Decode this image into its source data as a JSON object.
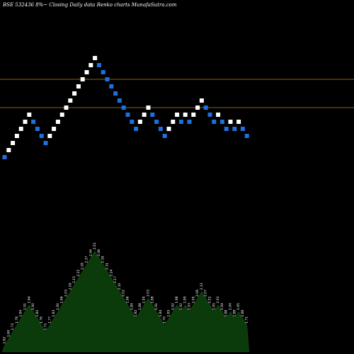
{
  "chart_data": {
    "type": "renko",
    "title": "BSE 532436  8%~  Closing Daily data  Renko  charts MunafaSutra.com",
    "up_color": "#ffffff",
    "down_color": "#1e6fe0",
    "line_color": "#b8860b",
    "volume_color": "#0b3a0b",
    "bricks": [
      {
        "y": 1.0,
        "dir": "down"
      },
      {
        "y": 1.05,
        "dir": "up"
      },
      {
        "y": 1.1,
        "dir": "up"
      },
      {
        "y": 1.15,
        "dir": "up"
      },
      {
        "y": 1.2,
        "dir": "up"
      },
      {
        "y": 1.25,
        "dir": "up"
      },
      {
        "y": 1.3,
        "dir": "up"
      },
      {
        "y": 1.25,
        "dir": "down"
      },
      {
        "y": 1.2,
        "dir": "down"
      },
      {
        "y": 1.15,
        "dir": "down"
      },
      {
        "y": 1.1,
        "dir": "down"
      },
      {
        "y": 1.15,
        "dir": "up"
      },
      {
        "y": 1.2,
        "dir": "up"
      },
      {
        "y": 1.25,
        "dir": "up"
      },
      {
        "y": 1.3,
        "dir": "up"
      },
      {
        "y": 1.35,
        "dir": "up"
      },
      {
        "y": 1.4,
        "dir": "up"
      },
      {
        "y": 1.45,
        "dir": "up"
      },
      {
        "y": 1.5,
        "dir": "up"
      },
      {
        "y": 1.55,
        "dir": "up"
      },
      {
        "y": 1.6,
        "dir": "up"
      },
      {
        "y": 1.65,
        "dir": "up"
      },
      {
        "y": 1.7,
        "dir": "up"
      },
      {
        "y": 1.65,
        "dir": "down"
      },
      {
        "y": 1.6,
        "dir": "down"
      },
      {
        "y": 1.55,
        "dir": "down"
      },
      {
        "y": 1.5,
        "dir": "down"
      },
      {
        "y": 1.45,
        "dir": "down"
      },
      {
        "y": 1.4,
        "dir": "down"
      },
      {
        "y": 1.35,
        "dir": "down"
      },
      {
        "y": 1.3,
        "dir": "down"
      },
      {
        "y": 1.25,
        "dir": "down"
      },
      {
        "y": 1.2,
        "dir": "down"
      },
      {
        "y": 1.25,
        "dir": "up"
      },
      {
        "y": 1.3,
        "dir": "up"
      },
      {
        "y": 1.35,
        "dir": "up"
      },
      {
        "y": 1.3,
        "dir": "down"
      },
      {
        "y": 1.25,
        "dir": "down"
      },
      {
        "y": 1.2,
        "dir": "down"
      },
      {
        "y": 1.15,
        "dir": "down"
      },
      {
        "y": 1.2,
        "dir": "up"
      },
      {
        "y": 1.25,
        "dir": "up"
      },
      {
        "y": 1.3,
        "dir": "up"
      },
      {
        "y": 1.25,
        "dir": "down"
      },
      {
        "y": 1.3,
        "dir": "up"
      },
      {
        "y": 1.25,
        "dir": "down"
      },
      {
        "y": 1.3,
        "dir": "up"
      },
      {
        "y": 1.35,
        "dir": "up"
      },
      {
        "y": 1.4,
        "dir": "up"
      },
      {
        "y": 1.35,
        "dir": "down"
      },
      {
        "y": 1.3,
        "dir": "down"
      },
      {
        "y": 1.25,
        "dir": "down"
      },
      {
        "y": 1.3,
        "dir": "up"
      },
      {
        "y": 1.25,
        "dir": "down"
      },
      {
        "y": 1.2,
        "dir": "down"
      },
      {
        "y": 1.25,
        "dir": "up"
      },
      {
        "y": 1.2,
        "dir": "down"
      },
      {
        "y": 1.25,
        "dir": "up"
      },
      {
        "y": 1.2,
        "dir": "down"
      },
      {
        "y": 1.15,
        "dir": "down"
      }
    ],
    "brick_labels": [
      "1.62",
      "1.69",
      "1.73",
      "1.78",
      "1.84",
      "1.91",
      "1.94",
      "1.90",
      "1.82",
      "1.76",
      "1.71",
      "1.77",
      "1.83",
      "1.90",
      "1.96",
      "2.03",
      "2.09",
      "2.15",
      "2.22",
      "2.28",
      "2.37",
      "2.44",
      "2.51",
      "2.46",
      "2.39",
      "2.31",
      "2.24",
      "2.17",
      "2.10",
      "2.02",
      "1.96",
      "1.89",
      "1.82",
      "1.88",
      "1.95",
      "2.03",
      "1.98",
      "1.91",
      "1.84",
      "1.79",
      "1.85",
      "1.92",
      "1.98",
      "1.92",
      "1.99",
      "1.93",
      "2.00",
      "2.06",
      "2.13",
      "2.07",
      "2.01",
      "1.95",
      "2.01",
      "1.94",
      "1.88",
      "1.94",
      "1.88",
      "1.95",
      "1.88",
      "1.71"
    ],
    "horizontal_lines": [
      1.35,
      1.55
    ]
  }
}
